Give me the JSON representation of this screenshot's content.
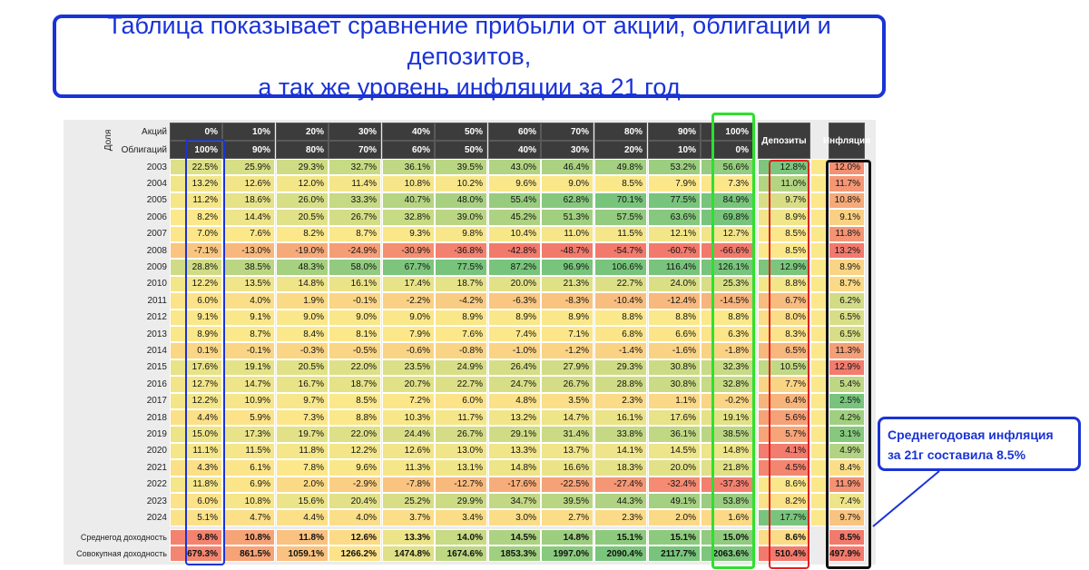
{
  "title": {
    "line1": "Таблица показывает сравнение прибыли от акций, облигаций и депозитов,",
    "line2": "а так же уровень инфляции за 21 год"
  },
  "table": {
    "dolya_label": "Доля",
    "row_label_stocks": "Акций",
    "row_label_bonds": "Облигаций",
    "stocks_pct": [
      "0%",
      "10%",
      "20%",
      "30%",
      "40%",
      "50%",
      "60%",
      "70%",
      "80%",
      "90%",
      "100%"
    ],
    "bonds_pct": [
      "100%",
      "90%",
      "80%",
      "70%",
      "60%",
      "50%",
      "40%",
      "30%",
      "20%",
      "10%",
      "0%"
    ],
    "deposits_header": "Депозиты",
    "inflation_header": "Инфляция",
    "years": [
      "2003",
      "2004",
      "2005",
      "2006",
      "2007",
      "2008",
      "2009",
      "2010",
      "2011",
      "2012",
      "2013",
      "2014",
      "2015",
      "2016",
      "2017",
      "2018",
      "2019",
      "2020",
      "2021",
      "2022",
      "2023",
      "2024"
    ],
    "portfolio_returns": [
      [
        22.5,
        25.9,
        29.3,
        32.7,
        36.1,
        39.5,
        43.0,
        46.4,
        49.8,
        53.2,
        56.6
      ],
      [
        13.2,
        12.6,
        12.0,
        11.4,
        10.8,
        10.2,
        9.6,
        9.0,
        8.5,
        7.9,
        7.3
      ],
      [
        11.2,
        18.6,
        26.0,
        33.3,
        40.7,
        48.0,
        55.4,
        62.8,
        70.1,
        77.5,
        84.9
      ],
      [
        8.2,
        14.4,
        20.5,
        26.7,
        32.8,
        39.0,
        45.2,
        51.3,
        57.5,
        63.6,
        69.8
      ],
      [
        7.0,
        7.6,
        8.2,
        8.7,
        9.3,
        9.8,
        10.4,
        11.0,
        11.5,
        12.1,
        12.7
      ],
      [
        -7.1,
        -13.0,
        -19.0,
        -24.9,
        -30.9,
        -36.8,
        -42.8,
        -48.7,
        -54.7,
        -60.7,
        -66.6
      ],
      [
        28.8,
        38.5,
        48.3,
        58.0,
        67.7,
        77.5,
        87.2,
        96.9,
        106.6,
        116.4,
        126.1
      ],
      [
        12.2,
        13.5,
        14.8,
        16.1,
        17.4,
        18.7,
        20.0,
        21.3,
        22.7,
        24.0,
        25.3
      ],
      [
        6.0,
        4.0,
        1.9,
        -0.1,
        -2.2,
        -4.2,
        -6.3,
        -8.3,
        -10.4,
        -12.4,
        -14.5
      ],
      [
        9.1,
        9.1,
        9.0,
        9.0,
        9.0,
        8.9,
        8.9,
        8.9,
        8.8,
        8.8,
        8.8
      ],
      [
        8.9,
        8.7,
        8.4,
        8.1,
        7.9,
        7.6,
        7.4,
        7.1,
        6.8,
        6.6,
        6.3
      ],
      [
        0.1,
        -0.1,
        -0.3,
        -0.5,
        -0.6,
        -0.8,
        -1.0,
        -1.2,
        -1.4,
        -1.6,
        -1.8
      ],
      [
        17.6,
        19.1,
        20.5,
        22.0,
        23.5,
        24.9,
        26.4,
        27.9,
        29.3,
        30.8,
        32.3
      ],
      [
        12.7,
        14.7,
        16.7,
        18.7,
        20.7,
        22.7,
        24.7,
        26.7,
        28.8,
        30.8,
        32.8
      ],
      [
        12.2,
        10.9,
        9.7,
        8.5,
        7.2,
        6.0,
        4.8,
        3.5,
        2.3,
        1.1,
        -0.2
      ],
      [
        4.4,
        5.9,
        7.3,
        8.8,
        10.3,
        11.7,
        13.2,
        14.7,
        16.1,
        17.6,
        19.1
      ],
      [
        15.0,
        17.3,
        19.7,
        22.0,
        24.4,
        26.7,
        29.1,
        31.4,
        33.8,
        36.1,
        38.5
      ],
      [
        11.1,
        11.5,
        11.8,
        12.2,
        12.6,
        13.0,
        13.3,
        13.7,
        14.1,
        14.5,
        14.8
      ],
      [
        4.3,
        6.1,
        7.8,
        9.6,
        11.3,
        13.1,
        14.8,
        16.6,
        18.3,
        20.0,
        21.8
      ],
      [
        11.8,
        6.9,
        2.0,
        -2.9,
        -7.8,
        -12.7,
        -17.6,
        -22.5,
        -27.4,
        -32.4,
        -37.3
      ],
      [
        6.0,
        10.8,
        15.6,
        20.4,
        25.2,
        29.9,
        34.7,
        39.5,
        44.3,
        49.1,
        53.8
      ],
      [
        5.1,
        4.7,
        4.4,
        4.0,
        3.7,
        3.4,
        3.0,
        2.7,
        2.3,
        2.0,
        1.6
      ]
    ],
    "deposits": [
      12.8,
      11.0,
      9.7,
      8.9,
      8.5,
      8.5,
      12.9,
      8.8,
      6.7,
      8.0,
      8.3,
      6.5,
      10.5,
      7.7,
      6.4,
      5.6,
      5.7,
      4.1,
      4.5,
      8.6,
      8.2,
      17.7
    ],
    "inflation": [
      12.0,
      11.7,
      10.8,
      9.1,
      11.8,
      13.2,
      8.9,
      8.7,
      6.2,
      6.5,
      6.5,
      11.3,
      12.9,
      5.4,
      2.5,
      4.2,
      3.1,
      4.9,
      8.4,
      11.9,
      7.4,
      9.7
    ],
    "avg_label": "Среднегод доходность",
    "avg_returns": [
      9.8,
      10.8,
      11.8,
      12.6,
      13.3,
      14.0,
      14.5,
      14.8,
      15.1,
      15.1,
      15.0
    ],
    "avg_deposits": 8.6,
    "avg_inflation": 8.5,
    "cum_label": "Совокупная доходность",
    "cum_returns": [
      679.3,
      861.5,
      1059.1,
      1266.2,
      1474.8,
      1674.6,
      1853.3,
      1997.0,
      2090.4,
      2117.7,
      2063.6
    ],
    "cum_deposits": 510.4,
    "cum_inflation": 497.9
  },
  "callout": {
    "line1": "Среднегодовая инфляция",
    "line2": "за 21г составила 8.5%"
  },
  "colors": {
    "accent_blue": "#1a33d6",
    "green_outline": "#2ee02e",
    "red_outline": "#e02020",
    "black_outline": "#111111",
    "header_bg": "#3c3c3c"
  }
}
